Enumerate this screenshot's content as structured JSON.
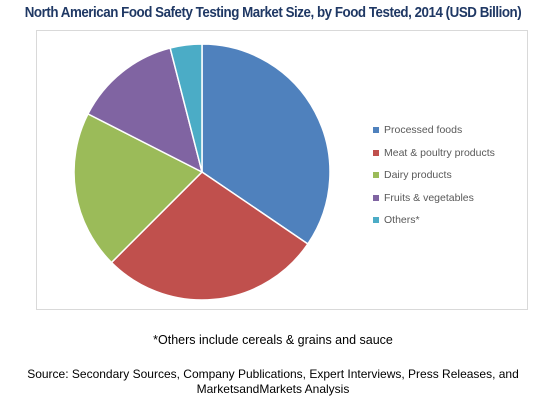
{
  "chart_data": {
    "type": "pie",
    "title": "North American Food Safety Testing Market Size, by Food Tested, 2014 (USD Billion)",
    "categories": [
      "Processed foods",
      "Meat & poultry products",
      "Dairy products",
      "Fruits & vegetables",
      "Others*"
    ],
    "values": [
      34.5,
      28.0,
      20.0,
      13.5,
      4.0
    ],
    "colors": [
      "#4f81bd",
      "#c0504d",
      "#9bbb59",
      "#8064a2",
      "#4bacc6"
    ],
    "legend_position": "right",
    "start_angle": "12 o'clock",
    "direction": "clockwise"
  },
  "footnote": "*Others include cereals & grains and sauce",
  "source_line1": "Source: Secondary Sources, Company Publications, Expert Interviews, Press Releases, and",
  "source_line2": "MarketsandMarkets Analysis",
  "colors": {
    "title": "#1f3864",
    "legend_text": "#595959",
    "frame": "#d9d9d9",
    "slice_border": "#ffffff"
  }
}
